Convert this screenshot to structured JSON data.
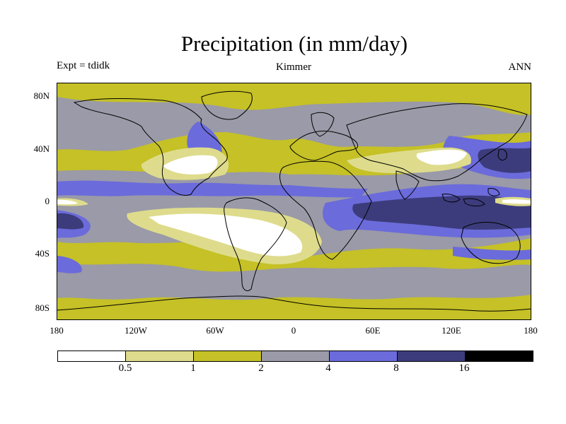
{
  "title": "Precipitation (in mm/day)",
  "experiment_label": "Expt = tdidk",
  "model_label": "Kimmer",
  "season_label": "ANN",
  "map": {
    "y_ticks": [
      "80N",
      "40N",
      "0",
      "40S",
      "80S"
    ],
    "x_ticks": [
      "180",
      "120W",
      "60W",
      "0",
      "60E",
      "120E",
      "180"
    ],
    "level_colors": {
      "lt_0_5": "#ffffff",
      "0_5_to_1": "#dedc8c",
      "1_to_2": "#c5c126",
      "2_to_4": "#9a9aa8",
      "4_to_8": "#6b6bdb",
      "8_to_16": "#3c3c7c",
      "gt_16": "#000000"
    },
    "coast_color": "#000000"
  },
  "colorbar": {
    "colors": [
      "#ffffff",
      "#dedc8c",
      "#c5c126",
      "#9a9aa8",
      "#6b6bdb",
      "#3c3c7c",
      "#000000"
    ],
    "labels": [
      "0.5",
      "1",
      "2",
      "4",
      "8",
      "16"
    ]
  }
}
